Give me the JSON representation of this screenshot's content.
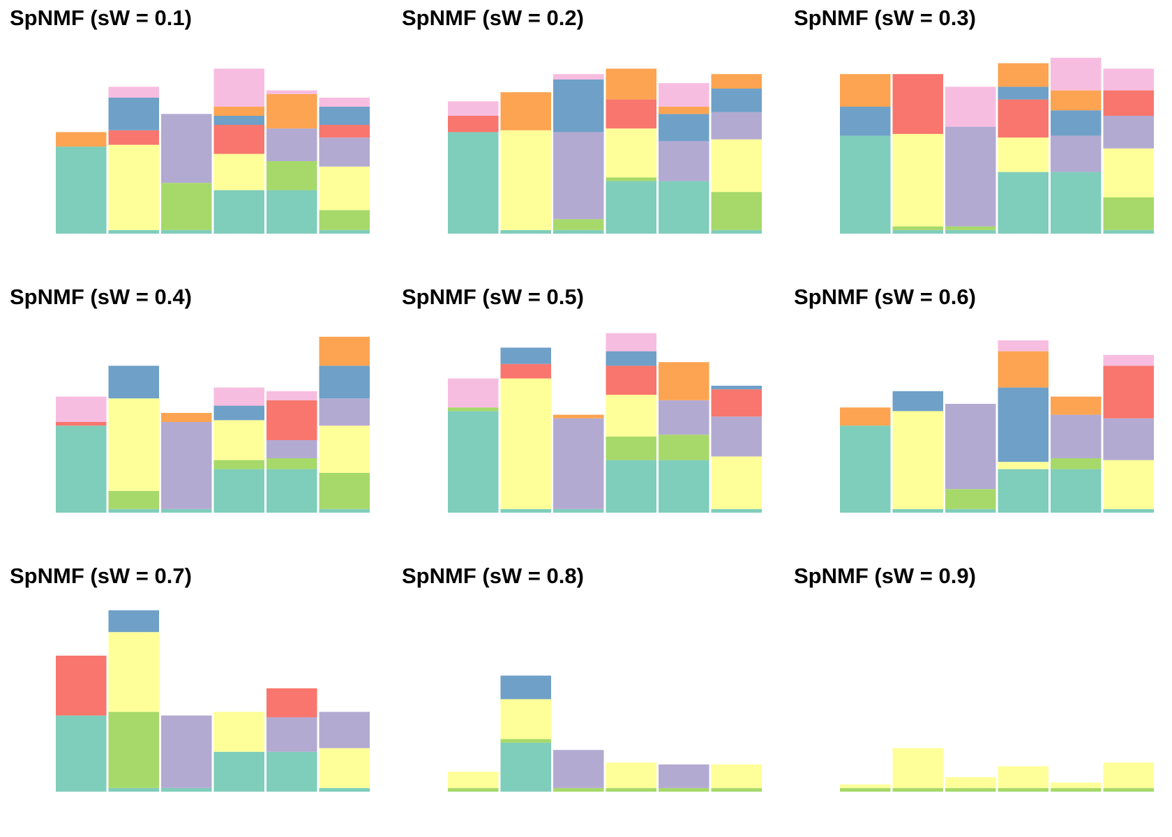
{
  "colors": {
    "teal": "#7fcdbb",
    "yellow": "#ffff99",
    "lavender": "#b3aad2",
    "red": "#f8766d",
    "blue": "#6fa0c8",
    "orange": "#fca451",
    "green": "#a6d96a",
    "pink": "#f7bde0"
  },
  "chart_data": [
    {
      "type": "bar",
      "stacked": true,
      "title": "SpNMF (sW = 0.1)",
      "xlabel": "",
      "ylabel": "",
      "axes": false,
      "grid": false,
      "legend": "none",
      "ylim": [
        0,
        1.0
      ],
      "groups": [
        {
          "teal": 0.48,
          "orange": 0.08
        },
        {
          "teal": 0.02,
          "yellow": 0.47,
          "red": 0.08,
          "blue": 0.18,
          "pink": 0.06
        },
        {
          "teal": 0.02,
          "lavender": 0.38,
          "green": 0.26
        },
        {
          "teal": 0.24,
          "yellow": 0.2,
          "red": 0.16,
          "blue": 0.05,
          "orange": 0.05,
          "pink": 0.21
        },
        {
          "teal": 0.24,
          "lavender": 0.18,
          "orange": 0.19,
          "green": 0.16,
          "pink": 0.02
        },
        {
          "teal": 0.02,
          "yellow": 0.24,
          "lavender": 0.16,
          "red": 0.07,
          "blue": 0.1,
          "green": 0.11,
          "pink": 0.05
        }
      ]
    },
    {
      "type": "bar",
      "stacked": true,
      "title": "SpNMF (sW = 0.2)",
      "xlabel": "",
      "ylabel": "",
      "axes": false,
      "grid": false,
      "legend": "none",
      "ylim": [
        0,
        1.0
      ],
      "groups": [
        {
          "teal": 0.56,
          "red": 0.09,
          "pink": 0.08
        },
        {
          "teal": 0.02,
          "yellow": 0.55,
          "orange": 0.21
        },
        {
          "teal": 0.02,
          "lavender": 0.48,
          "blue": 0.29,
          "green": 0.06,
          "pink": 0.03
        },
        {
          "teal": 0.29,
          "yellow": 0.27,
          "red": 0.16,
          "orange": 0.17,
          "green": 0.02
        },
        {
          "teal": 0.29,
          "lavender": 0.22,
          "blue": 0.15,
          "orange": 0.04,
          "pink": 0.13
        },
        {
          "teal": 0.02,
          "yellow": 0.29,
          "lavender": 0.15,
          "blue": 0.13,
          "orange": 0.08,
          "green": 0.21
        }
      ]
    },
    {
      "type": "bar",
      "stacked": true,
      "title": "SpNMF (sW = 0.3)",
      "xlabel": "",
      "ylabel": "",
      "axes": false,
      "grid": false,
      "legend": "none",
      "ylim": [
        0,
        1.0
      ],
      "groups": [
        {
          "teal": 0.54,
          "blue": 0.16,
          "orange": 0.18
        },
        {
          "teal": 0.02,
          "yellow": 0.51,
          "red": 0.33,
          "green": 0.02
        },
        {
          "teal": 0.02,
          "lavender": 0.55,
          "green": 0.02,
          "pink": 0.22
        },
        {
          "teal": 0.34,
          "yellow": 0.19,
          "red": 0.21,
          "blue": 0.07,
          "orange": 0.13
        },
        {
          "teal": 0.34,
          "lavender": 0.2,
          "blue": 0.14,
          "orange": 0.11,
          "pink": 0.18
        },
        {
          "teal": 0.02,
          "yellow": 0.27,
          "lavender": 0.18,
          "red": 0.14,
          "green": 0.18,
          "pink": 0.12
        }
      ]
    },
    {
      "type": "bar",
      "stacked": true,
      "title": "SpNMF (sW = 0.4)",
      "xlabel": "",
      "ylabel": "",
      "axes": false,
      "grid": false,
      "legend": "none",
      "ylim": [
        0,
        1.0
      ],
      "groups": [
        {
          "teal": 0.48,
          "red": 0.02,
          "pink": 0.14
        },
        {
          "teal": 0.02,
          "yellow": 0.51,
          "blue": 0.18,
          "green": 0.1
        },
        {
          "teal": 0.02,
          "lavender": 0.48,
          "orange": 0.05
        },
        {
          "teal": 0.24,
          "yellow": 0.22,
          "blue": 0.08,
          "green": 0.05,
          "pink": 0.1
        },
        {
          "teal": 0.24,
          "lavender": 0.1,
          "red": 0.22,
          "green": 0.06,
          "pink": 0.05
        },
        {
          "teal": 0.02,
          "yellow": 0.26,
          "lavender": 0.15,
          "blue": 0.18,
          "orange": 0.16,
          "green": 0.2
        }
      ]
    },
    {
      "type": "bar",
      "stacked": true,
      "title": "SpNMF (sW = 0.5)",
      "xlabel": "",
      "ylabel": "",
      "axes": false,
      "grid": false,
      "legend": "none",
      "ylim": [
        0,
        1.0
      ],
      "groups": [
        {
          "teal": 0.56,
          "green": 0.02,
          "pink": 0.16
        },
        {
          "teal": 0.02,
          "yellow": 0.72,
          "red": 0.08,
          "blue": 0.09
        },
        {
          "teal": 0.02,
          "lavender": 0.5,
          "orange": 0.02
        },
        {
          "teal": 0.29,
          "yellow": 0.23,
          "red": 0.16,
          "blue": 0.08,
          "green": 0.13,
          "pink": 0.1
        },
        {
          "teal": 0.29,
          "lavender": 0.19,
          "orange": 0.21,
          "green": 0.14
        },
        {
          "teal": 0.02,
          "yellow": 0.29,
          "lavender": 0.22,
          "red": 0.15,
          "blue": 0.02
        }
      ]
    },
    {
      "type": "bar",
      "stacked": true,
      "title": "SpNMF (sW = 0.6)",
      "xlabel": "",
      "ylabel": "",
      "axes": false,
      "grid": false,
      "legend": "none",
      "ylim": [
        0,
        1.0
      ],
      "groups": [
        {
          "teal": 0.48,
          "orange": 0.1
        },
        {
          "teal": 0.02,
          "yellow": 0.54,
          "blue": 0.11
        },
        {
          "teal": 0.02,
          "lavender": 0.47,
          "green": 0.11
        },
        {
          "teal": 0.24,
          "yellow": 0.04,
          "blue": 0.41,
          "orange": 0.2,
          "pink": 0.06
        },
        {
          "teal": 0.24,
          "lavender": 0.24,
          "green": 0.06,
          "orange": 0.1
        },
        {
          "teal": 0.02,
          "yellow": 0.27,
          "lavender": 0.23,
          "red": 0.29,
          "pink": 0.06
        }
      ]
    },
    {
      "type": "bar",
      "stacked": true,
      "title": "SpNMF (sW = 0.7)",
      "xlabel": "",
      "ylabel": "",
      "axes": false,
      "grid": false,
      "legend": "none",
      "ylim": [
        0,
        1.0
      ],
      "groups": [
        {
          "teal": 0.42,
          "red": 0.33
        },
        {
          "teal": 0.02,
          "yellow": 0.44,
          "green": 0.42,
          "blue": 0.12
        },
        {
          "teal": 0.02,
          "lavender": 0.4
        },
        {
          "teal": 0.22,
          "yellow": 0.22
        },
        {
          "teal": 0.22,
          "lavender": 0.19,
          "red": 0.16
        },
        {
          "teal": 0.02,
          "yellow": 0.22,
          "lavender": 0.2
        }
      ]
    },
    {
      "type": "bar",
      "stacked": true,
      "title": "SpNMF (sW = 0.8)",
      "xlabel": "",
      "ylabel": "",
      "axes": false,
      "grid": false,
      "legend": "none",
      "ylim": [
        0,
        1.0
      ],
      "groups": [
        {
          "green": 0.02,
          "yellow": 0.09
        },
        {
          "green": 0.02,
          "yellow": 0.22,
          "teal": 0.27,
          "blue": 0.13
        },
        {
          "green": 0.02,
          "lavender": 0.21
        },
        {
          "green": 0.02,
          "yellow": 0.14
        },
        {
          "green": 0.02,
          "lavender": 0.13
        },
        {
          "green": 0.02,
          "yellow": 0.13
        }
      ]
    },
    {
      "type": "bar",
      "stacked": true,
      "title": "SpNMF (sW = 0.9)",
      "xlabel": "",
      "ylabel": "",
      "axes": false,
      "grid": false,
      "legend": "none",
      "ylim": [
        0,
        1.0
      ],
      "groups": [
        {
          "green": 0.02,
          "yellow": 0.02
        },
        {
          "green": 0.02,
          "yellow": 0.22
        },
        {
          "green": 0.02,
          "yellow": 0.06
        },
        {
          "green": 0.02,
          "yellow": 0.12
        },
        {
          "green": 0.02,
          "yellow": 0.03
        },
        {
          "green": 0.02,
          "yellow": 0.14
        }
      ]
    }
  ]
}
